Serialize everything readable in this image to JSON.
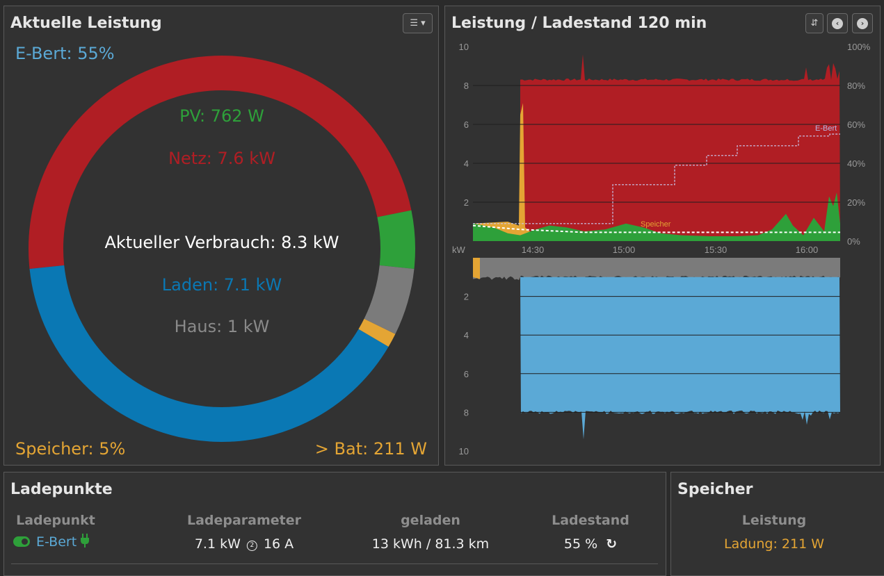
{
  "colors": {
    "pv": "#2ea03a",
    "grid": "#b01e24",
    "charging": "#0a78b4",
    "house": "#7b7b7b",
    "storage": "#e4a534",
    "vehicle": "#5aa9d8",
    "chargeLight": "#5ba9d6"
  },
  "power_panel": {
    "title": "Aktuelle Leistung",
    "menu_icon": "menu-bars-icon",
    "vehicle_soc": "E-Bert: 55%",
    "pv": "PV: 762 W",
    "grid": "Netz: 7.6 kW",
    "consumption": "Aktueller Verbrauch: 8.3 kW",
    "charging": "Laden: 7.1 kW",
    "house": "Haus: 1 kW",
    "storage_soc": "Speicher: 5%",
    "battery": "> Bat: 211 W",
    "top_arc_split": {
      "grid_kw": 7.6,
      "pv_kw": 0.762
    },
    "bottom_arc_split": {
      "charging_kw": 7.1,
      "battery_kw": 0.211,
      "house_kw": 1.0
    }
  },
  "history_panel": {
    "title": "Leistung / Ladestand 120 min",
    "buttons": [
      "sort-icon",
      "chevron-left-icon",
      "chevron-right-icon"
    ],
    "unit_label": "kW",
    "label_ebert": "E-Bert",
    "label_speicher": "Speicher"
  },
  "chart_data": {
    "type": "area",
    "x_ticks": [
      "14:30",
      "15:00",
      "15:30",
      "16:00"
    ],
    "upper": {
      "y_left_ticks": [
        "10",
        "8",
        "6",
        "4",
        "2"
      ],
      "y_right_ticks": [
        "100%",
        "80%",
        "60%",
        "40%",
        "20%",
        "0%"
      ],
      "ylim": [
        0,
        10
      ],
      "series": [
        {
          "name": "Netz",
          "approx_kw": 8.3
        },
        {
          "name": "PV",
          "approx_kw": 0.5
        },
        {
          "name": "Speicher",
          "approx_kw": 0.2
        },
        {
          "name": "E-Bert",
          "soc_steps_percent": [
            9,
            29,
            39,
            44,
            49,
            54,
            55
          ]
        }
      ]
    },
    "lower": {
      "y_ticks": [
        "2",
        "4",
        "6",
        "8",
        "10"
      ],
      "ylim": [
        0,
        10
      ],
      "series": [
        {
          "name": "Haus",
          "approx_kw": 1.0
        },
        {
          "name": "Laden",
          "approx_kw": 8.0
        }
      ]
    }
  },
  "chargepoints_panel": {
    "title": "Ladepunkte",
    "headers": [
      "Ladepunkt",
      "Ladeparameter",
      "geladen",
      "Ladestand"
    ],
    "row": {
      "name": "E-Bert",
      "params": "7.1 kW",
      "params_amp": "16 A",
      "charged": "13 kWh / 81.3 km",
      "soc": "55 %"
    }
  },
  "storage_panel": {
    "title": "Speicher",
    "header": "Leistung",
    "value": "Ladung: 211 W"
  }
}
